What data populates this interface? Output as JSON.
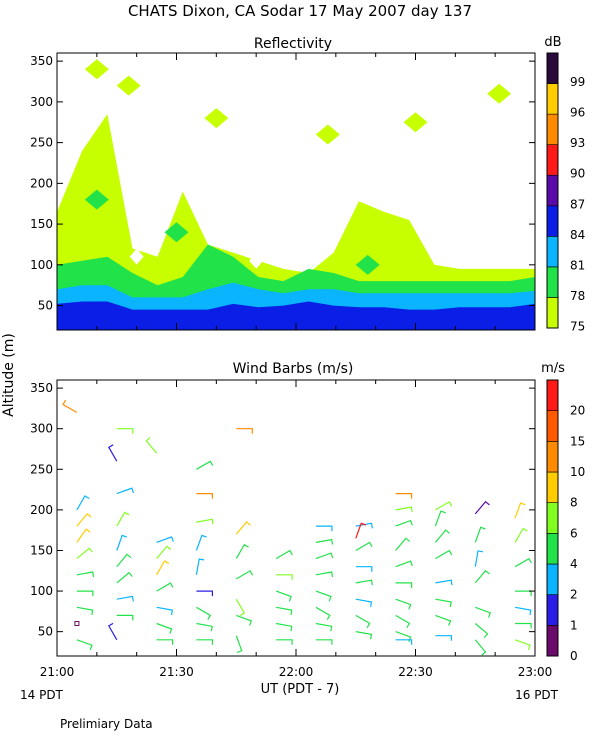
{
  "title": "CHATS Dixon, CA  Sodar  17 May 2007  day 137",
  "shared_ylabel": "Altitude (m)",
  "footer": {
    "left_time": "14 PDT",
    "right_time": "16 PDT",
    "note": "Prelimiary Data"
  },
  "chart_data": [
    {
      "type": "heatmap",
      "title": "Reflectivity",
      "colorbar_unit": "dB",
      "ylim": [
        20,
        360
      ],
      "yticks": [
        50,
        100,
        150,
        200,
        250,
        300,
        350
      ],
      "xlim": [
        0,
        120
      ],
      "xticks": [
        0,
        30,
        60,
        90,
        120
      ],
      "colorbar": {
        "levels": [
          "75",
          "78",
          "81",
          "84",
          "87",
          "90",
          "93",
          "96",
          "99"
        ],
        "colors": [
          "#c8ff00",
          "#22e24a",
          "#0ab4ff",
          "#0a1ee6",
          "#5a0aa8",
          "#ff1a1a",
          "#ff8c00",
          "#ffcc00",
          "#2a0a3a"
        ]
      },
      "layers": [
        {
          "color": "#c8ff00",
          "top": [
            165,
            240,
            285,
            120,
            110,
            190,
            125,
            115,
            105,
            95,
            90,
            115,
            178,
            165,
            155,
            100,
            95,
            95,
            95,
            95
          ]
        },
        {
          "color": "#22e24a",
          "top": [
            100,
            105,
            110,
            90,
            75,
            85,
            125,
            110,
            85,
            80,
            95,
            90,
            80,
            80,
            80,
            80,
            80,
            80,
            80,
            85
          ]
        },
        {
          "color": "#0ab4ff",
          "top": [
            70,
            75,
            75,
            60,
            60,
            60,
            70,
            78,
            70,
            65,
            70,
            70,
            65,
            65,
            65,
            65,
            65,
            65,
            65,
            68
          ]
        },
        {
          "color": "#0a1ee6",
          "top": [
            52,
            55,
            55,
            45,
            45,
            45,
            45,
            52,
            48,
            50,
            55,
            50,
            48,
            48,
            45,
            45,
            48,
            48,
            48,
            52
          ]
        }
      ],
      "patches": [
        {
          "color": "#c8ff00",
          "center": [
            10,
            340
          ]
        },
        {
          "color": "#c8ff00",
          "center": [
            18,
            320
          ]
        },
        {
          "color": "#c8ff00",
          "center": [
            40,
            280
          ]
        },
        {
          "color": "#c8ff00",
          "center": [
            68,
            260
          ]
        },
        {
          "color": "#c8ff00",
          "center": [
            90,
            275
          ]
        },
        {
          "color": "#c8ff00",
          "center": [
            111,
            310
          ]
        },
        {
          "color": "#22e24a",
          "center": [
            10,
            180
          ]
        },
        {
          "color": "#22e24a",
          "center": [
            30,
            140
          ]
        },
        {
          "color": "#22e24a",
          "center": [
            78,
            100
          ]
        }
      ],
      "holes": [
        {
          "center": [
            20,
            110
          ]
        },
        {
          "center": [
            50,
            105
          ]
        }
      ]
    },
    {
      "type": "scatter",
      "title": "Wind Barbs (m/s)",
      "colorbar_unit": "m/s",
      "ylim": [
        20,
        360
      ],
      "yticks": [
        50,
        100,
        150,
        200,
        250,
        300,
        350
      ],
      "xlim": [
        0,
        120
      ],
      "xticks": [
        0,
        30,
        60,
        90,
        120
      ],
      "xtick_labels": [
        "21:00",
        "21:30",
        "22:00",
        "22:30",
        "23:00"
      ],
      "xlabel": "UT  (PDT - 7)",
      "colorbar": {
        "levels": [
          "0",
          "1",
          "2",
          "4",
          "6",
          "8",
          "10",
          "15",
          "20"
        ],
        "colors": [
          "#6a0a6a",
          "#2a1ee6",
          "#0ab4ff",
          "#22e24a",
          "#80ff20",
          "#ffcc00",
          "#ff8c00",
          "#ff5a00",
          "#ff1a1a"
        ]
      },
      "barbs": [
        {
          "t": 5,
          "alt": 320,
          "dir": 300,
          "color": "#ff8c00"
        },
        {
          "t": 5,
          "alt": 200,
          "dir": 30,
          "color": "#0ab4ff"
        },
        {
          "t": 5,
          "alt": 180,
          "dir": 40,
          "color": "#ffcc00"
        },
        {
          "t": 5,
          "alt": 160,
          "dir": 35,
          "color": "#ffcc00"
        },
        {
          "t": 5,
          "alt": 140,
          "dir": 50,
          "color": "#80ff20"
        },
        {
          "t": 5,
          "alt": 120,
          "dir": 80,
          "color": "#22e24a"
        },
        {
          "t": 5,
          "alt": 100,
          "dir": 90,
          "color": "#22e24a"
        },
        {
          "t": 5,
          "alt": 80,
          "dir": 100,
          "color": "#22e24a"
        },
        {
          "t": 5,
          "alt": 60,
          "dir": 0,
          "color": "#6a0a6a"
        },
        {
          "t": 5,
          "alt": 40,
          "dir": 110,
          "color": "#22e24a"
        },
        {
          "t": 15,
          "alt": 300,
          "dir": 90,
          "color": "#80ff20"
        },
        {
          "t": 15,
          "alt": 260,
          "dir": 330,
          "color": "#2a1ee6"
        },
        {
          "t": 15,
          "alt": 220,
          "dir": 70,
          "color": "#0ab4ff"
        },
        {
          "t": 15,
          "alt": 180,
          "dir": 30,
          "color": "#80ff20"
        },
        {
          "t": 15,
          "alt": 150,
          "dir": 20,
          "color": "#0ab4ff"
        },
        {
          "t": 15,
          "alt": 130,
          "dir": 40,
          "color": "#22e24a"
        },
        {
          "t": 15,
          "alt": 110,
          "dir": 50,
          "color": "#22e24a"
        },
        {
          "t": 15,
          "alt": 90,
          "dir": 80,
          "color": "#0ab4ff"
        },
        {
          "t": 15,
          "alt": 70,
          "dir": 90,
          "color": "#22e24a"
        },
        {
          "t": 15,
          "alt": 40,
          "dir": 330,
          "color": "#2a1ee6"
        },
        {
          "t": 25,
          "alt": 270,
          "dir": 320,
          "color": "#80ff20"
        },
        {
          "t": 25,
          "alt": 160,
          "dir": 70,
          "color": "#0ab4ff"
        },
        {
          "t": 25,
          "alt": 140,
          "dir": 40,
          "color": "#80ff20"
        },
        {
          "t": 25,
          "alt": 120,
          "dir": 30,
          "color": "#ffcc00"
        },
        {
          "t": 25,
          "alt": 100,
          "dir": 60,
          "color": "#22e24a"
        },
        {
          "t": 25,
          "alt": 80,
          "dir": 100,
          "color": "#0ab4ff"
        },
        {
          "t": 25,
          "alt": 60,
          "dir": 110,
          "color": "#22e24a"
        },
        {
          "t": 25,
          "alt": 40,
          "dir": 90,
          "color": "#22e24a"
        },
        {
          "t": 35,
          "alt": 250,
          "dir": 60,
          "color": "#22e24a"
        },
        {
          "t": 35,
          "alt": 220,
          "dir": 90,
          "color": "#ff8c00"
        },
        {
          "t": 35,
          "alt": 185,
          "dir": 80,
          "color": "#80ff20"
        },
        {
          "t": 35,
          "alt": 150,
          "dir": 20,
          "color": "#0ab4ff"
        },
        {
          "t": 35,
          "alt": 120,
          "dir": 10,
          "color": "#0ab4ff"
        },
        {
          "t": 35,
          "alt": 100,
          "dir": 90,
          "color": "#2a1ee6"
        },
        {
          "t": 35,
          "alt": 80,
          "dir": 120,
          "color": "#22e24a"
        },
        {
          "t": 35,
          "alt": 60,
          "dir": 100,
          "color": "#22e24a"
        },
        {
          "t": 35,
          "alt": 40,
          "dir": 90,
          "color": "#22e24a"
        },
        {
          "t": 45,
          "alt": 300,
          "dir": 90,
          "color": "#ff8c00"
        },
        {
          "t": 45,
          "alt": 170,
          "dir": 40,
          "color": "#ffcc00"
        },
        {
          "t": 45,
          "alt": 140,
          "dir": 30,
          "color": "#22e24a"
        },
        {
          "t": 45,
          "alt": 115,
          "dir": 60,
          "color": "#22e24a"
        },
        {
          "t": 45,
          "alt": 90,
          "dir": 150,
          "color": "#80ff20"
        },
        {
          "t": 45,
          "alt": 70,
          "dir": 110,
          "color": "#22e24a"
        },
        {
          "t": 45,
          "alt": 45,
          "dir": 160,
          "color": "#22e24a"
        },
        {
          "t": 55,
          "alt": 140,
          "dir": 60,
          "color": "#22e24a"
        },
        {
          "t": 55,
          "alt": 120,
          "dir": 90,
          "color": "#80ff20"
        },
        {
          "t": 55,
          "alt": 100,
          "dir": 110,
          "color": "#22e24a"
        },
        {
          "t": 55,
          "alt": 80,
          "dir": 100,
          "color": "#22e24a"
        },
        {
          "t": 55,
          "alt": 60,
          "dir": 100,
          "color": "#22e24a"
        },
        {
          "t": 55,
          "alt": 40,
          "dir": 90,
          "color": "#22e24a"
        },
        {
          "t": 65,
          "alt": 180,
          "dir": 90,
          "color": "#0ab4ff"
        },
        {
          "t": 65,
          "alt": 160,
          "dir": 80,
          "color": "#22e24a"
        },
        {
          "t": 65,
          "alt": 140,
          "dir": 70,
          "color": "#22e24a"
        },
        {
          "t": 65,
          "alt": 120,
          "dir": 80,
          "color": "#22e24a"
        },
        {
          "t": 65,
          "alt": 100,
          "dir": 110,
          "color": "#22e24a"
        },
        {
          "t": 65,
          "alt": 80,
          "dir": 120,
          "color": "#22e24a"
        },
        {
          "t": 65,
          "alt": 60,
          "dir": 100,
          "color": "#22e24a"
        },
        {
          "t": 65,
          "alt": 40,
          "dir": 90,
          "color": "#22e24a"
        },
        {
          "t": 75,
          "alt": 180,
          "dir": 80,
          "color": "#0ab4ff"
        },
        {
          "t": 75,
          "alt": 165,
          "dir": 20,
          "color": "#ff1a1a"
        },
        {
          "t": 75,
          "alt": 150,
          "dir": 60,
          "color": "#22e24a"
        },
        {
          "t": 75,
          "alt": 130,
          "dir": 90,
          "color": "#0ab4ff"
        },
        {
          "t": 75,
          "alt": 110,
          "dir": 80,
          "color": "#22e24a"
        },
        {
          "t": 75,
          "alt": 90,
          "dir": 100,
          "color": "#0ab4ff"
        },
        {
          "t": 75,
          "alt": 70,
          "dir": 120,
          "color": "#22e24a"
        },
        {
          "t": 75,
          "alt": 50,
          "dir": 100,
          "color": "#22e24a"
        },
        {
          "t": 85,
          "alt": 220,
          "dir": 90,
          "color": "#ff8c00"
        },
        {
          "t": 85,
          "alt": 200,
          "dir": 80,
          "color": "#80ff20"
        },
        {
          "t": 85,
          "alt": 180,
          "dir": 70,
          "color": "#22e24a"
        },
        {
          "t": 85,
          "alt": 150,
          "dir": 40,
          "color": "#22e24a"
        },
        {
          "t": 85,
          "alt": 130,
          "dir": 70,
          "color": "#22e24a"
        },
        {
          "t": 85,
          "alt": 110,
          "dir": 90,
          "color": "#22e24a"
        },
        {
          "t": 85,
          "alt": 90,
          "dir": 110,
          "color": "#22e24a"
        },
        {
          "t": 85,
          "alt": 70,
          "dir": 120,
          "color": "#22e24a"
        },
        {
          "t": 85,
          "alt": 50,
          "dir": 110,
          "color": "#22e24a"
        },
        {
          "t": 85,
          "alt": 40,
          "dir": 90,
          "color": "#0ab4ff"
        },
        {
          "t": 95,
          "alt": 200,
          "dir": 60,
          "color": "#80ff20"
        },
        {
          "t": 95,
          "alt": 180,
          "dir": 20,
          "color": "#22e24a"
        },
        {
          "t": 95,
          "alt": 160,
          "dir": 40,
          "color": "#22e24a"
        },
        {
          "t": 95,
          "alt": 140,
          "dir": 60,
          "color": "#22e24a"
        },
        {
          "t": 95,
          "alt": 110,
          "dir": 80,
          "color": "#0ab4ff"
        },
        {
          "t": 95,
          "alt": 90,
          "dir": 100,
          "color": "#22e24a"
        },
        {
          "t": 95,
          "alt": 70,
          "dir": 110,
          "color": "#22e24a"
        },
        {
          "t": 95,
          "alt": 45,
          "dir": 90,
          "color": "#0ab4ff"
        },
        {
          "t": 105,
          "alt": 195,
          "dir": 40,
          "color": "#5a0aa8"
        },
        {
          "t": 105,
          "alt": 160,
          "dir": 20,
          "color": "#22e24a"
        },
        {
          "t": 105,
          "alt": 130,
          "dir": 10,
          "color": "#0ab4ff"
        },
        {
          "t": 105,
          "alt": 110,
          "dir": 40,
          "color": "#22e24a"
        },
        {
          "t": 105,
          "alt": 80,
          "dir": 110,
          "color": "#22e24a"
        },
        {
          "t": 105,
          "alt": 60,
          "dir": 130,
          "color": "#22e24a"
        },
        {
          "t": 105,
          "alt": 40,
          "dir": 140,
          "color": "#22e24a"
        },
        {
          "t": 115,
          "alt": 190,
          "dir": 20,
          "color": "#ffcc00"
        },
        {
          "t": 115,
          "alt": 160,
          "dir": 30,
          "color": "#80ff20"
        },
        {
          "t": 115,
          "alt": 130,
          "dir": 60,
          "color": "#22e24a"
        },
        {
          "t": 115,
          "alt": 100,
          "dir": 90,
          "color": "#22e24a"
        },
        {
          "t": 115,
          "alt": 80,
          "dir": 100,
          "color": "#0ab4ff"
        },
        {
          "t": 115,
          "alt": 60,
          "dir": 90,
          "color": "#22e24a"
        },
        {
          "t": 115,
          "alt": 40,
          "dir": 110,
          "color": "#80ff20"
        }
      ]
    }
  ]
}
